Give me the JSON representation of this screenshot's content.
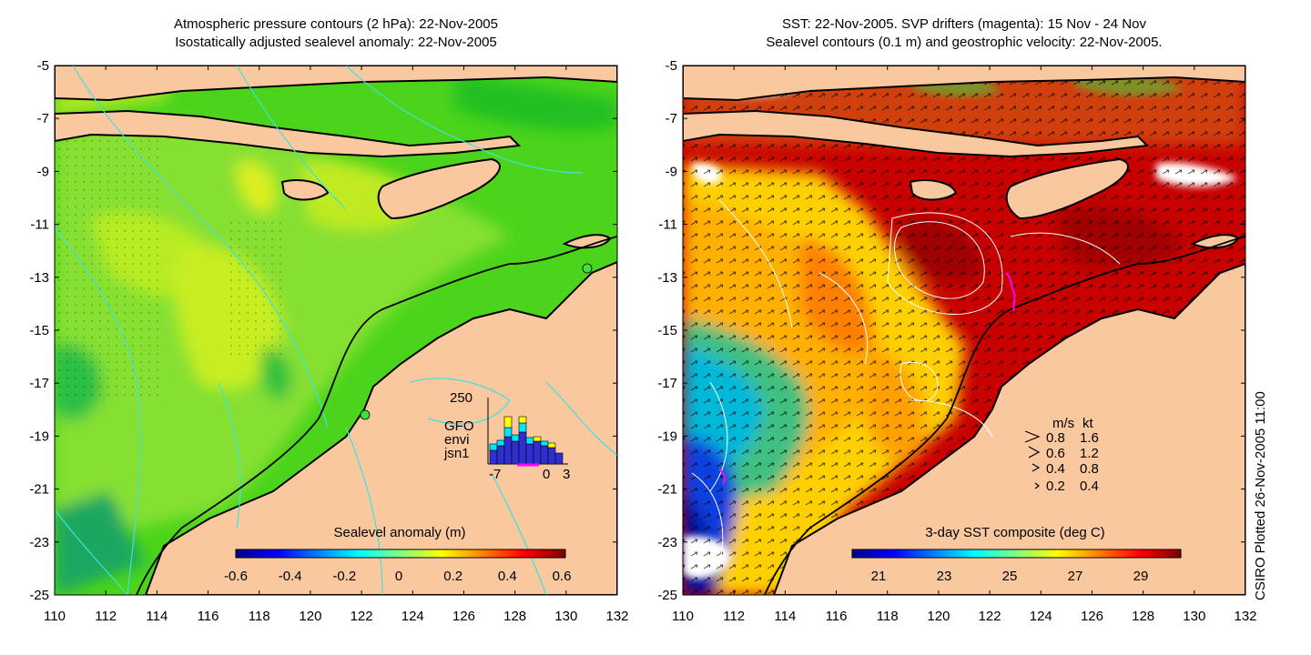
{
  "left_panel": {
    "title_line1": "Atmospheric pressure contours (2 hPa): 22-Nov-2005",
    "title_line2": "Isostatically adjusted sealevel anomaly: 22-Nov-2005",
    "colorbar_label": "Sealevel anomaly (m)",
    "colorbar_ticks": [
      "-0.6",
      "-0.4",
      "-0.2",
      "0",
      "0.2",
      "0.4",
      "0.6"
    ],
    "colormap": "jet",
    "inset": {
      "ymax_label": "250",
      "x_ticks": [
        "-7",
        "0",
        "3"
      ],
      "legend": [
        {
          "label": "GFO",
          "color": "#ffff00"
        },
        {
          "label": "envi",
          "color": "#00e5ff"
        },
        {
          "label": "jsn1",
          "color": "#2f2fd0"
        }
      ]
    }
  },
  "right_panel": {
    "title_line1": "SST: 22-Nov-2005. SVP drifters (magenta): 15 Nov - 24 Nov",
    "title_line2": "Sealevel contours (0.1 m) and geostrophic velocity: 22-Nov-2005.",
    "colorbar_label": "3-day SST composite (deg C)",
    "colorbar_ticks": [
      "21",
      "23",
      "25",
      "27",
      "29"
    ],
    "colormap": "jet",
    "velocity_legend": {
      "header_ms": "m/s",
      "header_kt": "kt",
      "rows": [
        {
          "ms": "0.8",
          "kt": "1.6"
        },
        {
          "ms": "0.6",
          "kt": "1.2"
        },
        {
          "ms": "0.4",
          "kt": "0.8"
        },
        {
          "ms": "0.2",
          "kt": "0.4"
        }
      ]
    }
  },
  "axes": {
    "x_ticks": [
      "110",
      "112",
      "114",
      "116",
      "118",
      "120",
      "122",
      "124",
      "126",
      "128",
      "130",
      "132"
    ],
    "y_ticks": [
      "-5",
      "-7",
      "-9",
      "-11",
      "-13",
      "-15",
      "-17",
      "-19",
      "-21",
      "-23",
      "-25"
    ]
  },
  "plot_stamp": "CSIRO Plotted 26-Nov-2005 11:00",
  "colors": {
    "land": "#f9c89f",
    "coast": "#000000",
    "pressure_contour": "#40e0e0",
    "sealevel_contour": "#ffffff",
    "drifter": "#ff00ff",
    "colorbar_outline": "#000000"
  }
}
